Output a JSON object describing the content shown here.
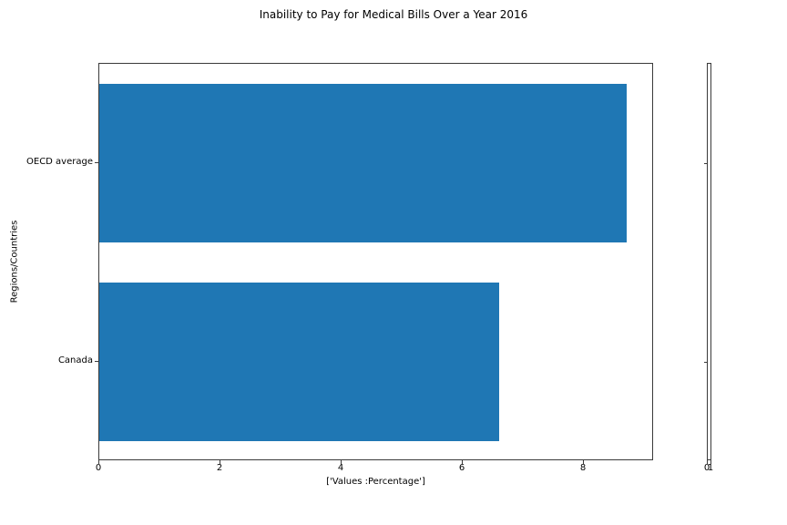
{
  "chart_data": {
    "type": "bar",
    "orientation": "horizontal",
    "title": "Inability to Pay for Medical Bills Over a Year 2016",
    "xlabel": "['Values :Percentage']",
    "ylabel": "Regions/Countries",
    "categories": [
      "OECD average",
      "Canada"
    ],
    "values": [
      8.7,
      6.6
    ],
    "xticks": [
      "0",
      "2",
      "4",
      "6",
      "8"
    ],
    "xtick_values": [
      0,
      2,
      4,
      6,
      8
    ],
    "xlim": [
      0,
      9.135
    ],
    "bar_color": "#1f77b4",
    "grid": false,
    "legend": false,
    "secondary_axis": {
      "xticks": [
        "0",
        "1"
      ],
      "xtick_values": [
        0,
        1
      ]
    }
  }
}
